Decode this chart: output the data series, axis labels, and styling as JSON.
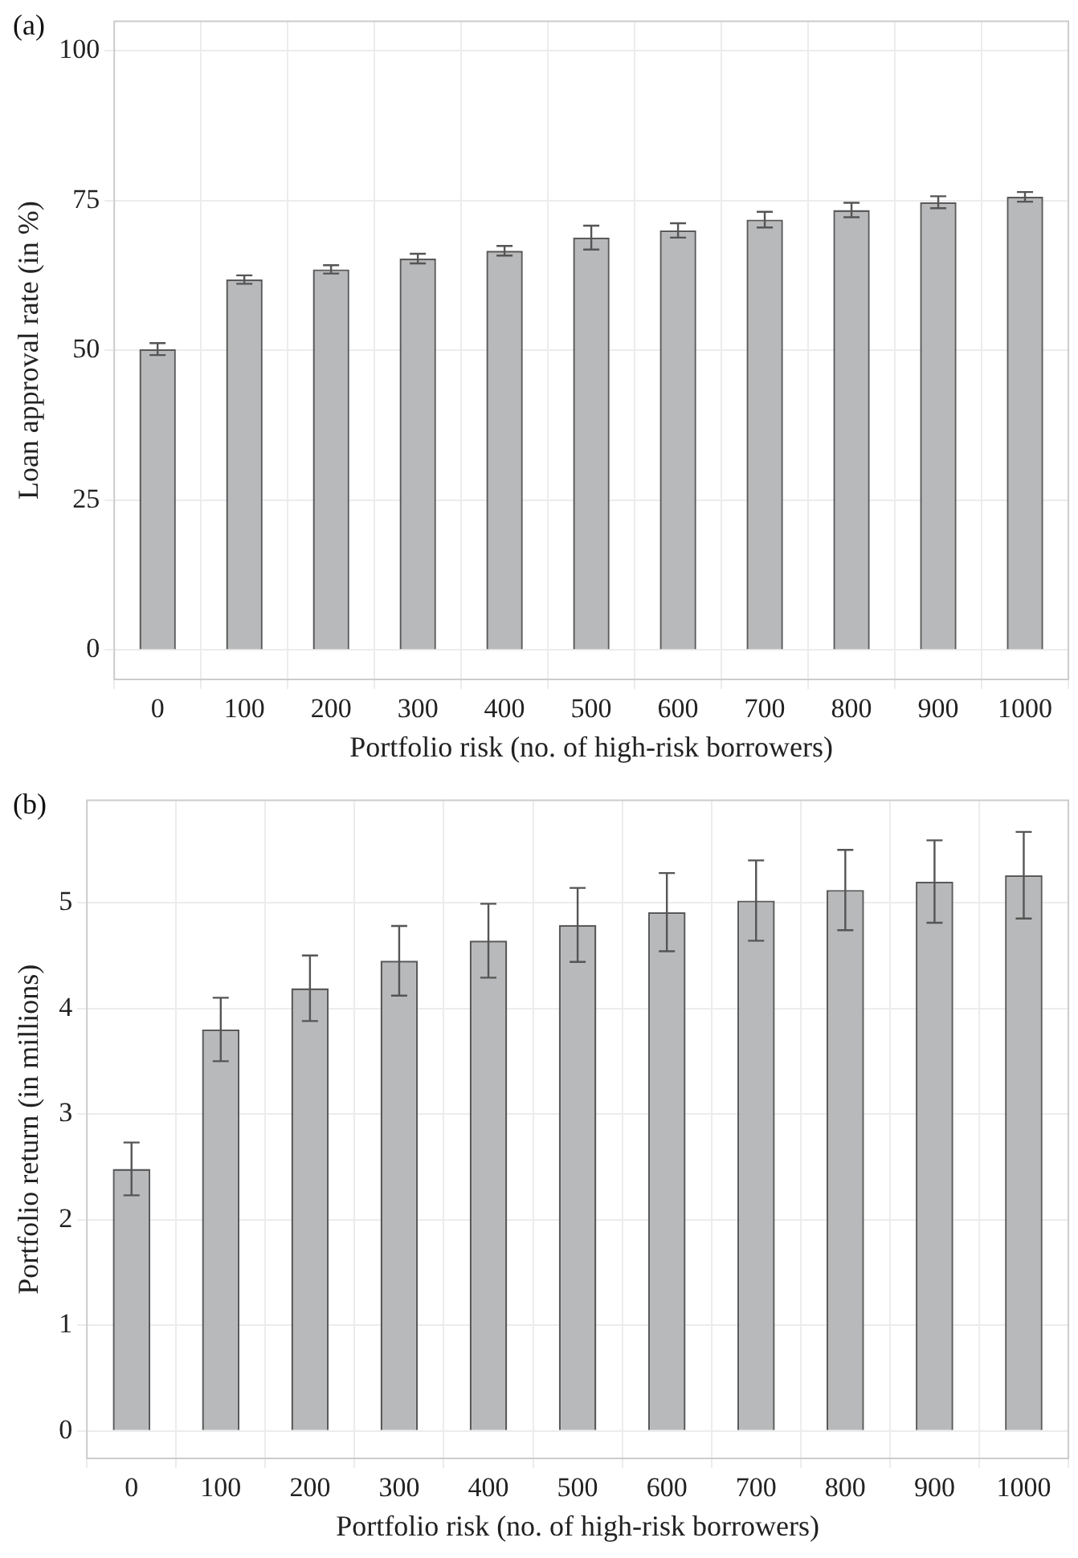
{
  "chart_data": [
    {
      "type": "bar",
      "title": "(a)",
      "xlabel": "Portfolio risk (no. of high-risk borrowers)",
      "ylabel": "Loan approval rate (in %)",
      "categories": [
        "0",
        "100",
        "200",
        "300",
        "400",
        "500",
        "600",
        "700",
        "800",
        "900",
        "1000"
      ],
      "values": [
        50.2,
        61.8,
        63.5,
        65.3,
        66.6,
        68.8,
        70,
        71.8,
        73.4,
        74.7,
        75.6
      ],
      "errors": [
        1,
        0.7,
        0.7,
        0.8,
        0.8,
        2,
        1.2,
        1.3,
        1.2,
        1,
        0.8
      ],
      "color": "#b8b9bb",
      "ylim": [
        -4.9,
        104.9
      ],
      "yticks": [
        0,
        25,
        50,
        75,
        100
      ],
      "grid": true
    },
    {
      "type": "bar",
      "title": "(b)",
      "xlabel": "Portfolio risk (no. of high-risk borrowers)",
      "ylabel": "Portfolio return (in millions)",
      "categories": [
        "0",
        "100",
        "200",
        "300",
        "400",
        "500",
        "600",
        "700",
        "800",
        "900",
        "1000"
      ],
      "values": [
        2.48,
        3.8,
        4.19,
        4.45,
        4.64,
        4.79,
        4.91,
        5.02,
        5.12,
        5.2,
        5.26
      ],
      "errors": [
        0.25,
        0.3,
        0.31,
        0.33,
        0.35,
        0.35,
        0.37,
        0.38,
        0.38,
        0.39,
        0.41
      ],
      "color": "#b8b9bb",
      "ylim": [
        -0.26,
        5.97
      ],
      "yticks": [
        0,
        1,
        2,
        3,
        4,
        5
      ],
      "grid": true
    }
  ]
}
